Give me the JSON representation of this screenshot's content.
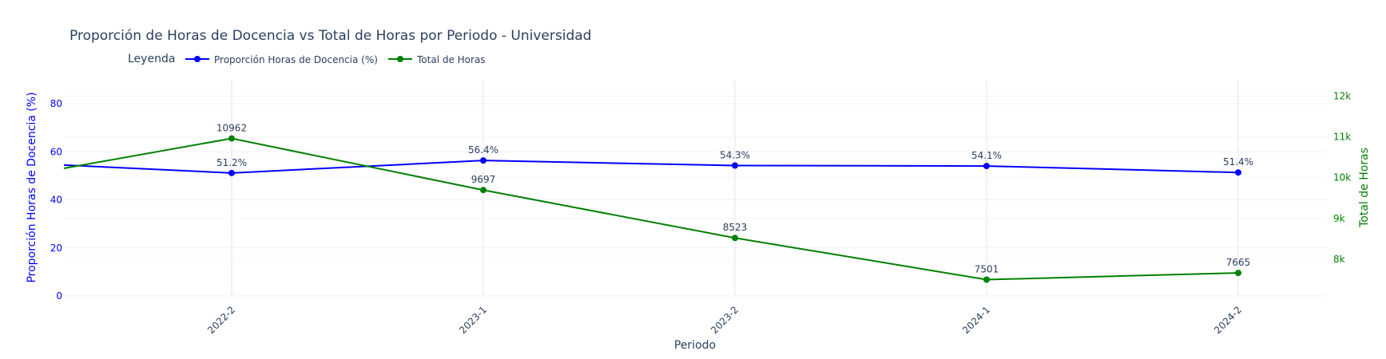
{
  "chart_data": {
    "type": "line",
    "title": "Proporción de Horas de Docencia vs Total de Horas por Periodo - Universidad",
    "xlabel": "Periodo",
    "categories": [
      "2022-2",
      "2023-1",
      "2023-2",
      "2024-1",
      "2024-2"
    ],
    "legend": {
      "title": "Leyenda",
      "placement": "top-left"
    },
    "series": [
      {
        "name": "Proporción Horas de Docencia (%)",
        "axis": "left",
        "color": "#0000ff",
        "values": [
          51.2,
          56.4,
          54.3,
          54.1,
          51.4
        ],
        "labels": [
          "51.2%",
          "56.4%",
          "54.3%",
          "54.1%",
          "51.4%"
        ],
        "left_edge_value": 54.5
      },
      {
        "name": "Total de Horas",
        "axis": "right",
        "color": "#008000",
        "values": [
          10962,
          9697,
          8523,
          7501,
          7665
        ],
        "labels": [
          "10962",
          "9697",
          "8523",
          "7501",
          "7665"
        ],
        "left_edge_value": 10230
      }
    ],
    "y_left": {
      "label": "Proporción Horas de Docencia (%)",
      "range": [
        0,
        90
      ],
      "ticks": [
        0,
        20,
        40,
        60,
        80
      ],
      "tick_labels": [
        "0",
        "20",
        "40",
        "60",
        "80"
      ]
    },
    "y_right": {
      "label": "Total de Horas",
      "range": [
        7100,
        12400
      ],
      "ticks": [
        8000,
        9000,
        10000,
        11000,
        12000
      ],
      "tick_labels": [
        "8k",
        "9k",
        "10k",
        "11k",
        "12k"
      ]
    },
    "grid": true
  }
}
